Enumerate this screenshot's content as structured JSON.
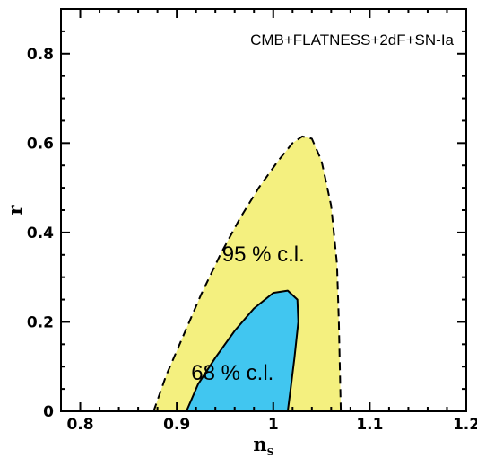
{
  "chart_data": {
    "type": "contour",
    "title": "",
    "xlabel": "n",
    "xlabel_subscript": "S",
    "ylabel": "r",
    "xlim": [
      0.78,
      1.2
    ],
    "ylim": [
      0,
      0.9
    ],
    "x_ticks": [
      0.8,
      0.9,
      1.0,
      1.1,
      1.2
    ],
    "x_tick_labels": [
      "0.8",
      "0.9",
      "1",
      "1.1",
      "1.2"
    ],
    "y_ticks": [
      0,
      0.2,
      0.4,
      0.6,
      0.8
    ],
    "y_tick_labels": [
      "0",
      "0.2",
      "0.4",
      "0.6",
      "0.8"
    ],
    "grid": false,
    "annotations": [
      {
        "text": "CMB+FLATNESS+2dF+SN-Ia",
        "x": 1.2,
        "y": 0.82,
        "anchor": "end"
      },
      {
        "text": "95 % c.l.",
        "x": 0.947,
        "y": 0.335,
        "anchor": "start"
      },
      {
        "text": "68 % c.l.",
        "x": 0.915,
        "y": 0.07,
        "anchor": "start"
      }
    ],
    "series": [
      {
        "name": "95 % c.l.",
        "color": "#f4f07f",
        "style": "dashed",
        "points": [
          [
            0.876,
            0
          ],
          [
            0.889,
            0.08
          ],
          [
            0.905,
            0.16
          ],
          [
            0.925,
            0.26
          ],
          [
            0.945,
            0.35
          ],
          [
            0.965,
            0.43
          ],
          [
            0.985,
            0.5
          ],
          [
            1.005,
            0.56
          ],
          [
            1.02,
            0.6
          ],
          [
            1.03,
            0.615
          ],
          [
            1.04,
            0.61
          ],
          [
            1.05,
            0.56
          ],
          [
            1.06,
            0.46
          ],
          [
            1.066,
            0.33
          ],
          [
            1.068,
            0.2
          ],
          [
            1.07,
            0
          ]
        ]
      },
      {
        "name": "68 % c.l.",
        "color": "#41c6f0",
        "style": "solid",
        "points": [
          [
            0.91,
            0
          ],
          [
            0.922,
            0.06
          ],
          [
            0.94,
            0.12
          ],
          [
            0.96,
            0.18
          ],
          [
            0.98,
            0.23
          ],
          [
            1.0,
            0.265
          ],
          [
            1.015,
            0.27
          ],
          [
            1.025,
            0.25
          ],
          [
            1.026,
            0.2
          ],
          [
            1.022,
            0.12
          ],
          [
            1.018,
            0.05
          ],
          [
            1.015,
            0
          ]
        ]
      }
    ]
  }
}
